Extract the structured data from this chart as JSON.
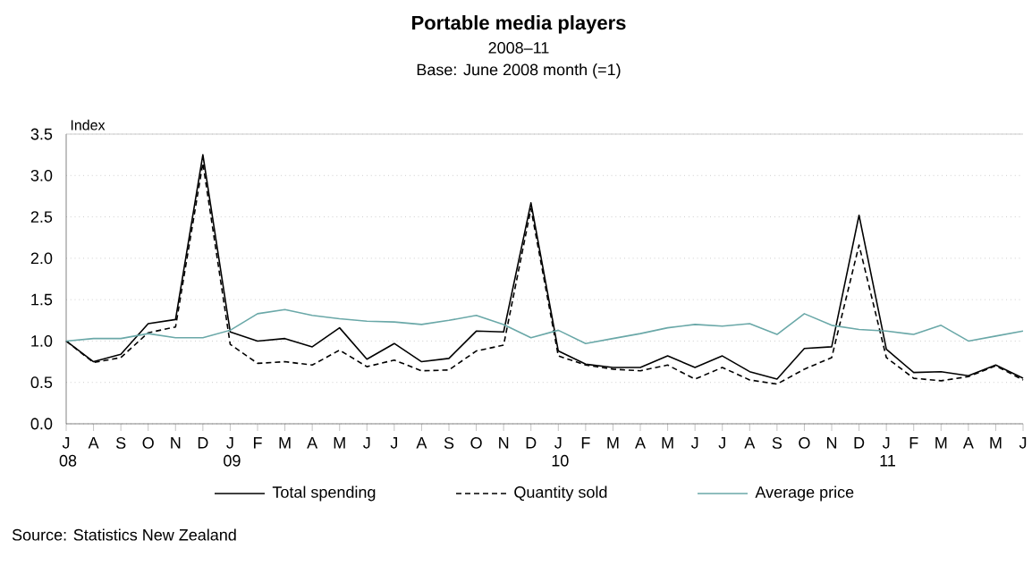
{
  "chart_data": {
    "type": "line",
    "title": "Portable media players",
    "subtitle": "2008–11",
    "annotations": [
      "Base: June 2008 month (=1)",
      "Source: Statistics New Zealand"
    ],
    "ylabel": "Index",
    "categories": [
      "J 08",
      "A",
      "S",
      "O",
      "N",
      "D",
      "J 09",
      "F",
      "M",
      "A",
      "M",
      "J",
      "J",
      "A",
      "S",
      "O",
      "N",
      "D",
      "J 10",
      "F",
      "M",
      "A",
      "M",
      "J",
      "J",
      "A",
      "S",
      "O",
      "N",
      "D",
      "J 11",
      "F",
      "M",
      "A",
      "M",
      "J"
    ],
    "series": [
      {
        "name": "Total spending",
        "color": "#000000",
        "line_style": "solid",
        "values": [
          1.0,
          0.75,
          0.84,
          1.21,
          1.26,
          3.25,
          1.11,
          1.0,
          1.03,
          0.93,
          1.16,
          0.78,
          0.97,
          0.75,
          0.79,
          1.12,
          1.11,
          2.67,
          0.88,
          0.72,
          0.68,
          0.68,
          0.82,
          0.68,
          0.82,
          0.63,
          0.54,
          0.91,
          0.93,
          2.52,
          0.9,
          0.62,
          0.63,
          0.58,
          0.71,
          0.55
        ]
      },
      {
        "name": "Quantity sold",
        "color": "#000000",
        "line_style": "dashed",
        "values": [
          1.0,
          0.74,
          0.8,
          1.1,
          1.17,
          3.15,
          0.96,
          0.73,
          0.75,
          0.71,
          0.89,
          0.69,
          0.77,
          0.64,
          0.65,
          0.88,
          0.95,
          2.6,
          0.82,
          0.71,
          0.66,
          0.64,
          0.71,
          0.54,
          0.68,
          0.53,
          0.48,
          0.66,
          0.8,
          2.16,
          0.8,
          0.55,
          0.52,
          0.57,
          0.7,
          0.53
        ]
      },
      {
        "name": "Average price",
        "color": "#6aa8a8",
        "line_style": "solid",
        "values": [
          1.0,
          1.03,
          1.03,
          1.09,
          1.04,
          1.04,
          1.13,
          1.33,
          1.38,
          1.31,
          1.27,
          1.24,
          1.23,
          1.2,
          1.25,
          1.31,
          1.2,
          1.04,
          1.13,
          0.97,
          1.03,
          1.09,
          1.16,
          1.2,
          1.18,
          1.21,
          1.08,
          1.33,
          1.19,
          1.14,
          1.12,
          1.08,
          1.19,
          1.0,
          1.06,
          1.12
        ]
      }
    ],
    "ylim": [
      0,
      3.5
    ],
    "yticks": [
      {
        "value": 0,
        "label": "0.0"
      },
      {
        "value": 0.5,
        "label": "0.5"
      },
      {
        "value": 1,
        "label": "1.0"
      },
      {
        "value": 1.5,
        "label": "1.5"
      },
      {
        "value": 2,
        "label": "2.0"
      },
      {
        "value": 2.5,
        "label": "2.5"
      },
      {
        "value": 3,
        "label": "3.0"
      },
      {
        "value": 3.5,
        "label": "3.5"
      }
    ],
    "grid": "y",
    "legend": "bottom",
    "marker": "none"
  }
}
